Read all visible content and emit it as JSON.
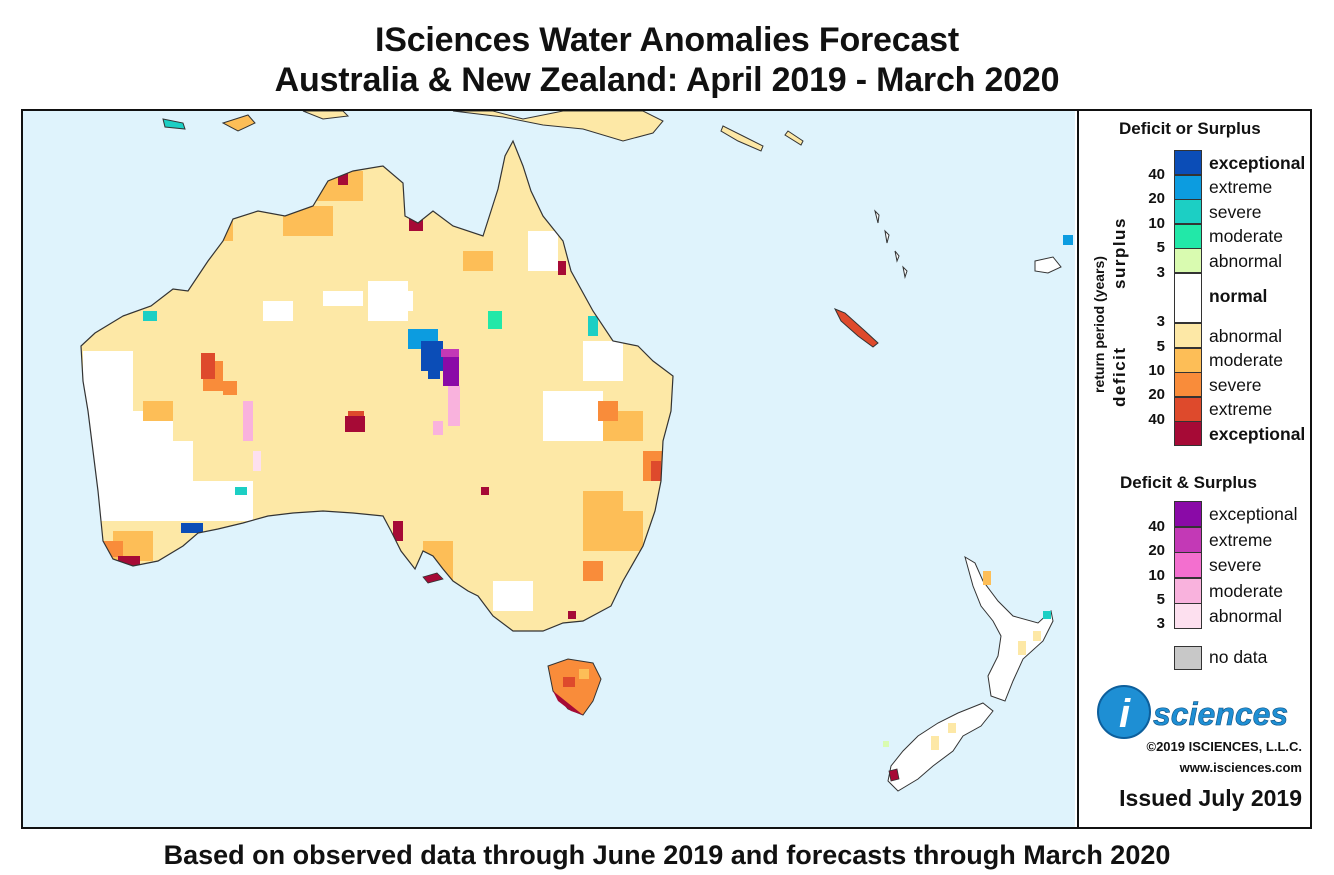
{
  "title_line1": "ISciences Water Anomalies Forecast",
  "title_line2": "Australia & New Zealand: April 2019 - March 2020",
  "footer": "Based on observed data through June 2019 and forecasts through March 2020",
  "colors": {
    "ocean": "#dff3fc",
    "land_border": "#333333",
    "deficit_abnormal": "#fde8a6",
    "deficit_moderate": "#fdbe57",
    "deficit_severe": "#f98c3a",
    "deficit_extreme": "#de4a2c",
    "deficit_exceptional": "#a60a36",
    "surplus_abnormal": "#d9fbb0",
    "surplus_moderate": "#22e8a8",
    "surplus_severe": "#1ccfc4",
    "surplus_extreme": "#0c9ce0",
    "surplus_exceptional": "#0b4db7",
    "both_abnormal": "#fde0ef",
    "both_moderate": "#f9b2dd",
    "both_severe": "#f36fcf",
    "both_extreme": "#c339b6",
    "both_exceptional": "#8a0aa7",
    "no_data": "#c8c8c8"
  },
  "legend": {
    "deficit_or_surplus_title": "Deficit or Surplus",
    "return_period_label": "return period (years)",
    "surplus_label": "surplus",
    "deficit_label": "deficit",
    "surplus_rows": [
      {
        "label": "exceptional",
        "bold": true,
        "color": "#0b4db7"
      },
      {
        "label": "extreme",
        "bold": false,
        "color": "#0c9ce0"
      },
      {
        "label": "severe",
        "bold": false,
        "color": "#1ccfc4"
      },
      {
        "label": "moderate",
        "bold": false,
        "color": "#22e8a8"
      },
      {
        "label": "abnormal",
        "bold": false,
        "color": "#d9fbb0"
      }
    ],
    "normal_label": "normal",
    "normal_color": "#ffffff",
    "deficit_rows": [
      {
        "label": "abnormal",
        "bold": false,
        "color": "#fde8a6"
      },
      {
        "label": "moderate",
        "bold": false,
        "color": "#fdbe57"
      },
      {
        "label": "severe",
        "bold": false,
        "color": "#f98c3a"
      },
      {
        "label": "extreme",
        "bold": false,
        "color": "#de4a2c"
      },
      {
        "label": "exceptional",
        "bold": true,
        "color": "#a60a36"
      }
    ],
    "surplus_numbers": [
      "40",
      "20",
      "10",
      "5",
      "3"
    ],
    "deficit_numbers": [
      "3",
      "5",
      "10",
      "20",
      "40"
    ],
    "deficit_and_surplus_title": "Deficit & Surplus",
    "both_rows": [
      {
        "label": "exceptional",
        "color": "#8a0aa7"
      },
      {
        "label": "extreme",
        "color": "#c339b6"
      },
      {
        "label": "severe",
        "color": "#f36fcf"
      },
      {
        "label": "moderate",
        "color": "#f9b2dd"
      },
      {
        "label": "abnormal",
        "color": "#fde0ef"
      }
    ],
    "both_numbers": [
      "40",
      "20",
      "10",
      "5",
      "3"
    ],
    "no_data_label": "no data",
    "no_data_color": "#c8c8c8"
  },
  "branding": {
    "logo_letter": "i",
    "logo_word": "sciences",
    "copyright": "©2019 ISCIENCES, L.L.C.",
    "website": "www.isciences.com",
    "issued": "Issued July 2019"
  }
}
